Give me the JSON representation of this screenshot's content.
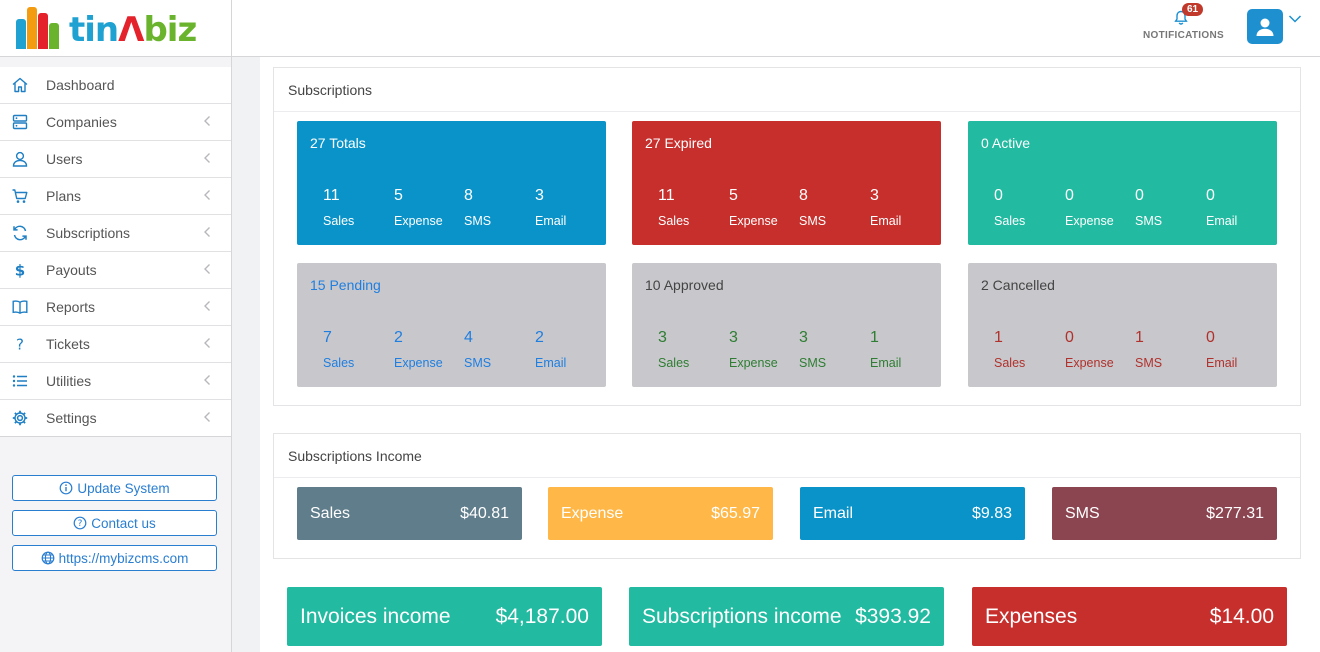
{
  "brand": {
    "name_part1": "tin",
    "name_part2": "Λ",
    "name_part3": "biz",
    "bar_colors": [
      "#1fa2d2",
      "#f39c12",
      "#e3222c",
      "#6ab42d"
    ]
  },
  "sidebar": {
    "items": [
      {
        "label": "Dashboard",
        "icon": "home-icon",
        "has_chevron": false
      },
      {
        "label": "Companies",
        "icon": "server-icon",
        "has_chevron": true
      },
      {
        "label": "Users",
        "icon": "user-icon",
        "has_chevron": true
      },
      {
        "label": "Plans",
        "icon": "cart-icon",
        "has_chevron": true
      },
      {
        "label": "Subscriptions",
        "icon": "refresh-icon",
        "has_chevron": true
      },
      {
        "label": "Payouts",
        "icon": "dollar-icon",
        "has_chevron": true
      },
      {
        "label": "Reports",
        "icon": "book-icon",
        "has_chevron": true
      },
      {
        "label": "Tickets",
        "icon": "question-icon",
        "has_chevron": true
      },
      {
        "label": "Utilities",
        "icon": "list-icon",
        "has_chevron": true
      },
      {
        "label": "Settings",
        "icon": "gear-icon",
        "has_chevron": true
      }
    ],
    "links": [
      {
        "label": "Update System",
        "icon": "info-icon"
      },
      {
        "label": "Contact us",
        "icon": "question-circle-icon"
      },
      {
        "label": "https://mybizcms.com",
        "icon": "globe-icon"
      }
    ]
  },
  "header": {
    "notifications_count": "61",
    "notifications_label": "NOTIFICATIONS"
  },
  "subscriptions": {
    "title": "Subscriptions",
    "cards": [
      {
        "title": "27 Totals",
        "bg": "#0a93c9",
        "title_color": "#ffffff",
        "stat_color": "#ffffff",
        "stats": [
          {
            "value": "11",
            "label": "Sales"
          },
          {
            "value": "5",
            "label": "Expense"
          },
          {
            "value": "8",
            "label": "SMS"
          },
          {
            "value": "3",
            "label": "Email"
          }
        ]
      },
      {
        "title": "27 Expired",
        "bg": "#c62f2c",
        "title_color": "#ffffff",
        "stat_color": "#ffffff",
        "stats": [
          {
            "value": "11",
            "label": "Sales"
          },
          {
            "value": "5",
            "label": "Expense"
          },
          {
            "value": "8",
            "label": "SMS"
          },
          {
            "value": "3",
            "label": "Email"
          }
        ]
      },
      {
        "title": "0 Active",
        "bg": "#22baa0",
        "title_color": "#ffffff",
        "stat_color": "#ffffff",
        "stats": [
          {
            "value": "0",
            "label": "Sales"
          },
          {
            "value": "0",
            "label": "Expense"
          },
          {
            "value": "0",
            "label": "SMS"
          },
          {
            "value": "0",
            "label": "Email"
          }
        ]
      },
      {
        "title": "15 Pending",
        "bg": "#c8c8cc",
        "title_color": "#1f7ee0",
        "stat_color": "#1f7ee0",
        "stats": [
          {
            "value": "7",
            "label": "Sales"
          },
          {
            "value": "2",
            "label": "Expense"
          },
          {
            "value": "4",
            "label": "SMS"
          },
          {
            "value": "2",
            "label": "Email"
          }
        ]
      },
      {
        "title": "10 Approved",
        "bg": "#c8c8cc",
        "title_color": "#444444",
        "stat_color": "#2e7d32",
        "stats": [
          {
            "value": "3",
            "label": "Sales"
          },
          {
            "value": "3",
            "label": "Expense"
          },
          {
            "value": "3",
            "label": "SMS"
          },
          {
            "value": "1",
            "label": "Email"
          }
        ]
      },
      {
        "title": "2 Cancelled",
        "bg": "#c8c8cc",
        "title_color": "#444444",
        "stat_color": "#b0312c",
        "stats": [
          {
            "value": "1",
            "label": "Sales"
          },
          {
            "value": "0",
            "label": "Expense"
          },
          {
            "value": "1",
            "label": "SMS"
          },
          {
            "value": "0",
            "label": "Email"
          }
        ]
      }
    ]
  },
  "income": {
    "title": "Subscriptions Income",
    "items": [
      {
        "label": "Sales",
        "amount": "$40.81",
        "bg": "#607d8b"
      },
      {
        "label": "Expense",
        "amount": "$65.97",
        "bg": "#ffb848"
      },
      {
        "label": "Email",
        "amount": "$9.83",
        "bg": "#0a93c9"
      },
      {
        "label": "SMS",
        "amount": "$277.31",
        "bg": "#8a4550"
      }
    ]
  },
  "summary": [
    {
      "label": "Invoices income",
      "amount": "$4,187.00",
      "bg": "#22baa0"
    },
    {
      "label": "Subscriptions income",
      "amount": "$393.92",
      "bg": "#22baa0"
    },
    {
      "label": "Expenses",
      "amount": "$14.00",
      "bg": "#c62f2c"
    }
  ]
}
